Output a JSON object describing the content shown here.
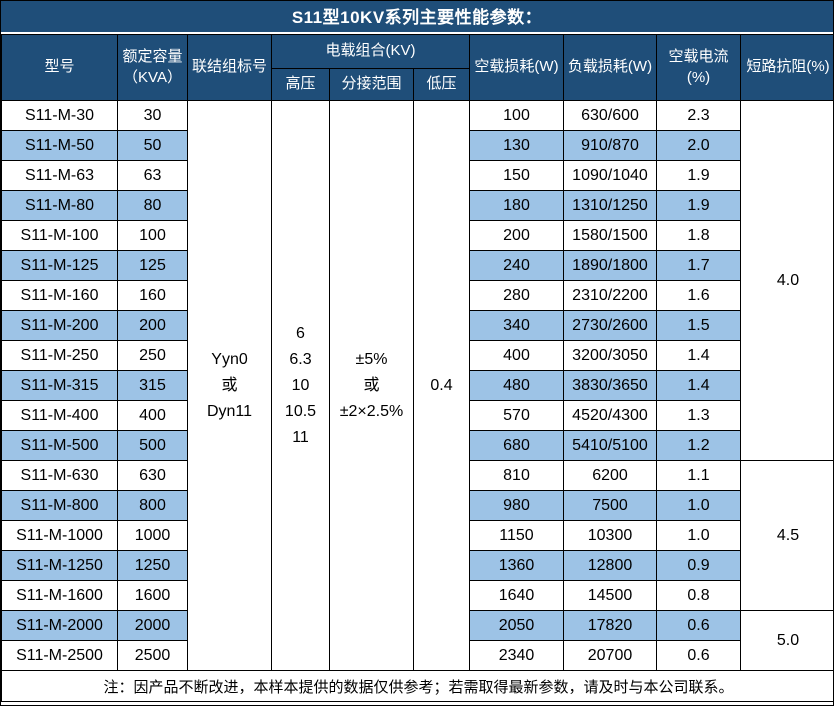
{
  "title": "S11型10KV系列主要性能参数：",
  "colors": {
    "header_bg": "#1f4e79",
    "stripe_bg": "#9dc3e6",
    "cell_bg": "#ffffff",
    "border": "#000000",
    "header_text": "#ffffff",
    "body_text": "#000000"
  },
  "header": {
    "model": "型号",
    "capacity": "额定容量\n（KVA）",
    "vector_group": "联结组标号",
    "voltage_combination": "电载组合(KV)",
    "hv": "高压",
    "tap_range": "分接范围",
    "lv": "低压",
    "no_load_loss": "空载损耗(W)",
    "load_loss": "负载损耗(W)",
    "no_load_current": "空载电流(%)",
    "impedance": "短路抗阻(%)"
  },
  "merged": {
    "vector_group": "Yyn0\n或\nDyn11",
    "hv": "6\n6.3\n10\n10.5\n11",
    "tap_range": "±5%\n或\n±2×2.5%",
    "lv": "0.4"
  },
  "rows": [
    {
      "model": "S11-M-30",
      "capacity": "30",
      "no_load_loss": "100",
      "load_loss": "630/600",
      "no_load_current": "2.3"
    },
    {
      "model": "S11-M-50",
      "capacity": "50",
      "no_load_loss": "130",
      "load_loss": "910/870",
      "no_load_current": "2.0"
    },
    {
      "model": "S11-M-63",
      "capacity": "63",
      "no_load_loss": "150",
      "load_loss": "1090/1040",
      "no_load_current": "1.9"
    },
    {
      "model": "S11-M-80",
      "capacity": "80",
      "no_load_loss": "180",
      "load_loss": "1310/1250",
      "no_load_current": "1.9"
    },
    {
      "model": "S11-M-100",
      "capacity": "100",
      "no_load_loss": "200",
      "load_loss": "1580/1500",
      "no_load_current": "1.8"
    },
    {
      "model": "S11-M-125",
      "capacity": "125",
      "no_load_loss": "240",
      "load_loss": "1890/1800",
      "no_load_current": "1.7"
    },
    {
      "model": "S11-M-160",
      "capacity": "160",
      "no_load_loss": "280",
      "load_loss": "2310/2200",
      "no_load_current": "1.6"
    },
    {
      "model": "S11-M-200",
      "capacity": "200",
      "no_load_loss": "340",
      "load_loss": "2730/2600",
      "no_load_current": "1.5"
    },
    {
      "model": "S11-M-250",
      "capacity": "250",
      "no_load_loss": "400",
      "load_loss": "3200/3050",
      "no_load_current": "1.4"
    },
    {
      "model": "S11-M-315",
      "capacity": "315",
      "no_load_loss": "480",
      "load_loss": "3830/3650",
      "no_load_current": "1.4"
    },
    {
      "model": "S11-M-400",
      "capacity": "400",
      "no_load_loss": "570",
      "load_loss": "4520/4300",
      "no_load_current": "1.3"
    },
    {
      "model": "S11-M-500",
      "capacity": "500",
      "no_load_loss": "680",
      "load_loss": "5410/5100",
      "no_load_current": "1.2"
    },
    {
      "model": "S11-M-630",
      "capacity": "630",
      "no_load_loss": "810",
      "load_loss": "6200",
      "no_load_current": "1.1"
    },
    {
      "model": "S11-M-800",
      "capacity": "800",
      "no_load_loss": "980",
      "load_loss": "7500",
      "no_load_current": "1.0"
    },
    {
      "model": "S11-M-1000",
      "capacity": "1000",
      "no_load_loss": "1150",
      "load_loss": "10300",
      "no_load_current": "1.0"
    },
    {
      "model": "S11-M-1250",
      "capacity": "1250",
      "no_load_loss": "1360",
      "load_loss": "12800",
      "no_load_current": "0.9"
    },
    {
      "model": "S11-M-1600",
      "capacity": "1600",
      "no_load_loss": "1640",
      "load_loss": "14500",
      "no_load_current": "0.8"
    },
    {
      "model": "S11-M-2000",
      "capacity": "2000",
      "no_load_loss": "2050",
      "load_loss": "17820",
      "no_load_current": "0.6"
    },
    {
      "model": "S11-M-2500",
      "capacity": "2500",
      "no_load_loss": "2340",
      "load_loss": "20700",
      "no_load_current": "0.6"
    }
  ],
  "impedance_groups": [
    {
      "value": "4.0",
      "span": 12
    },
    {
      "value": "4.5",
      "span": 5
    },
    {
      "value": "5.0",
      "span": 2
    }
  ],
  "footer_note": "注：因产品不断改进，本样本提供的数据仅供参考；若需取得最新参数，请及时与本公司联系。"
}
